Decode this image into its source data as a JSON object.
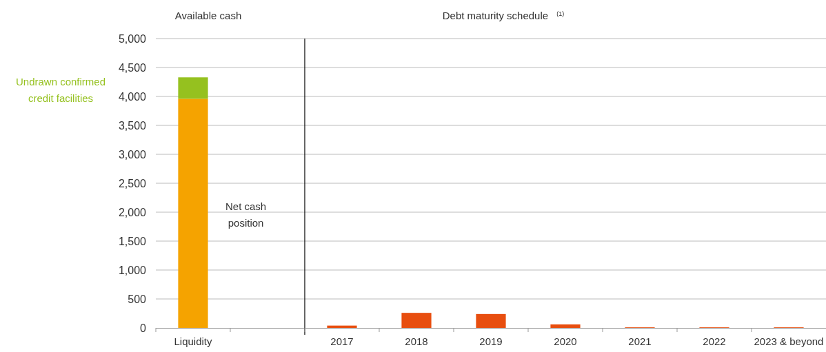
{
  "chart_data": [
    {
      "type": "bar",
      "stacked": true,
      "title": "Available cash",
      "categories": [
        "Liquidity",
        null
      ],
      "series": [
        {
          "name": "Net cash position",
          "color": "#f5a300",
          "values": [
            3960,
            null
          ]
        },
        {
          "name": "Undrawn confirmed credit facilities",
          "color": "#95c11f",
          "values": [
            370,
            null
          ]
        }
      ],
      "ylim": [
        0,
        5000
      ],
      "yticks": [
        {
          "value": 0,
          "label": "0"
        },
        {
          "value": 500,
          "label": "500"
        },
        {
          "value": 1000,
          "label": "1,000"
        },
        {
          "value": 1500,
          "label": "1,500"
        },
        {
          "value": 2000,
          "label": "2,000"
        },
        {
          "value": 2500,
          "label": "2,500"
        },
        {
          "value": 3000,
          "label": "3,000"
        },
        {
          "value": 3500,
          "label": "3,500"
        },
        {
          "value": 4000,
          "label": "4,000"
        },
        {
          "value": 4500,
          "label": "4,500"
        },
        {
          "value": 5000,
          "label": "5,000"
        }
      ],
      "grid": "y"
    },
    {
      "type": "bar",
      "title": "Debt maturity schedule $^{(1)}$",
      "categories": [
        "2017",
        "2018",
        "2019",
        "2020",
        "2021",
        "2022",
        "2023 & beyond"
      ],
      "series": [
        {
          "color": "#e84e0f",
          "values": [
            40,
            260,
            240,
            60,
            10,
            10,
            10
          ]
        }
      ],
      "ylim": [
        0,
        5000
      ],
      "yticks": [
        0,
        500,
        1000,
        1500,
        2000,
        2500,
        3000,
        3500,
        4000,
        4500,
        5000
      ],
      "grid": "y",
      "tick_labels": "x"
    }
  ]
}
